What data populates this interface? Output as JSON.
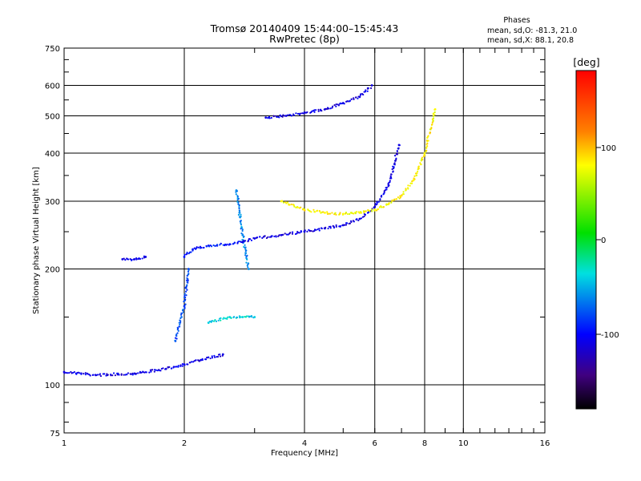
{
  "chart_data": {
    "type": "scatter",
    "title": "Tromsø 20140409 15:44:00–15:45:43",
    "subtitle": "RwPretec (8p)",
    "xlabel": "Frequency [MHz]",
    "ylabel": "Stationary phase Virtual Height [km]",
    "x_scale": "log",
    "y_scale": "log",
    "xlim": [
      1,
      16
    ],
    "ylim": [
      75,
      750
    ],
    "x_ticks": [
      "1",
      "2",
      "4",
      "6",
      "8",
      "10",
      "16"
    ],
    "y_ticks": [
      "75",
      "100",
      "200",
      "300",
      "400",
      "500",
      "600",
      "750"
    ],
    "grid": true,
    "phases_box": {
      "title": "Phases",
      "line1": "mean, sd,O: -81.3, 21.0",
      "line2": "mean, sd,X:  88.1, 20.8"
    },
    "colorbar": {
      "unit": "[deg]",
      "range": [
        -180,
        180
      ],
      "tick_labels": [
        "100",
        "0",
        "-100"
      ]
    },
    "traces": [
      {
        "x": [
          1.0,
          1.2,
          1.5,
          1.8,
          2.0,
          2.2,
          2.5
        ],
        "y": [
          108,
          106,
          107,
          110,
          113,
          116,
          120
        ],
        "phase": -110
      },
      {
        "x": [
          2.0,
          2.1,
          2.3,
          2.6,
          2.8
        ],
        "y": [
          215,
          225,
          230,
          232,
          235
        ],
        "phase": -95
      },
      {
        "x": [
          2.7,
          2.75,
          2.8,
          2.85,
          2.9
        ],
        "y": [
          320,
          280,
          245,
          220,
          200
        ],
        "phase": -60
      },
      {
        "x": [
          1.4,
          1.5,
          1.6
        ],
        "y": [
          212,
          212,
          215
        ],
        "phase": -110
      },
      {
        "x": [
          2.8,
          3.0,
          3.5,
          4.0,
          4.5,
          5.0,
          5.5,
          6.0,
          6.5,
          6.9
        ],
        "y": [
          235,
          240,
          245,
          250,
          255,
          260,
          270,
          290,
          330,
          420
        ],
        "phase": -110
      },
      {
        "x": [
          3.5,
          4.0,
          4.5,
          5.0,
          5.5,
          6.0,
          6.5,
          7.0,
          7.5,
          8.0,
          8.5
        ],
        "y": [
          300,
          285,
          280,
          278,
          280,
          285,
          295,
          310,
          340,
          400,
          520
        ],
        "phase": 80
      },
      {
        "x": [
          3.2,
          3.6,
          4.0,
          4.5,
          5.0,
          5.5,
          5.9
        ],
        "y": [
          495,
          500,
          510,
          520,
          540,
          560,
          600
        ],
        "phase": -110
      },
      {
        "x": [
          2.3,
          2.6,
          2.8,
          3.0
        ],
        "y": [
          145,
          150,
          150,
          150
        ],
        "phase": -40
      },
      {
        "x": [
          1.9,
          2.0,
          2.05
        ],
        "y": [
          130,
          160,
          200
        ],
        "phase": -80
      }
    ]
  }
}
